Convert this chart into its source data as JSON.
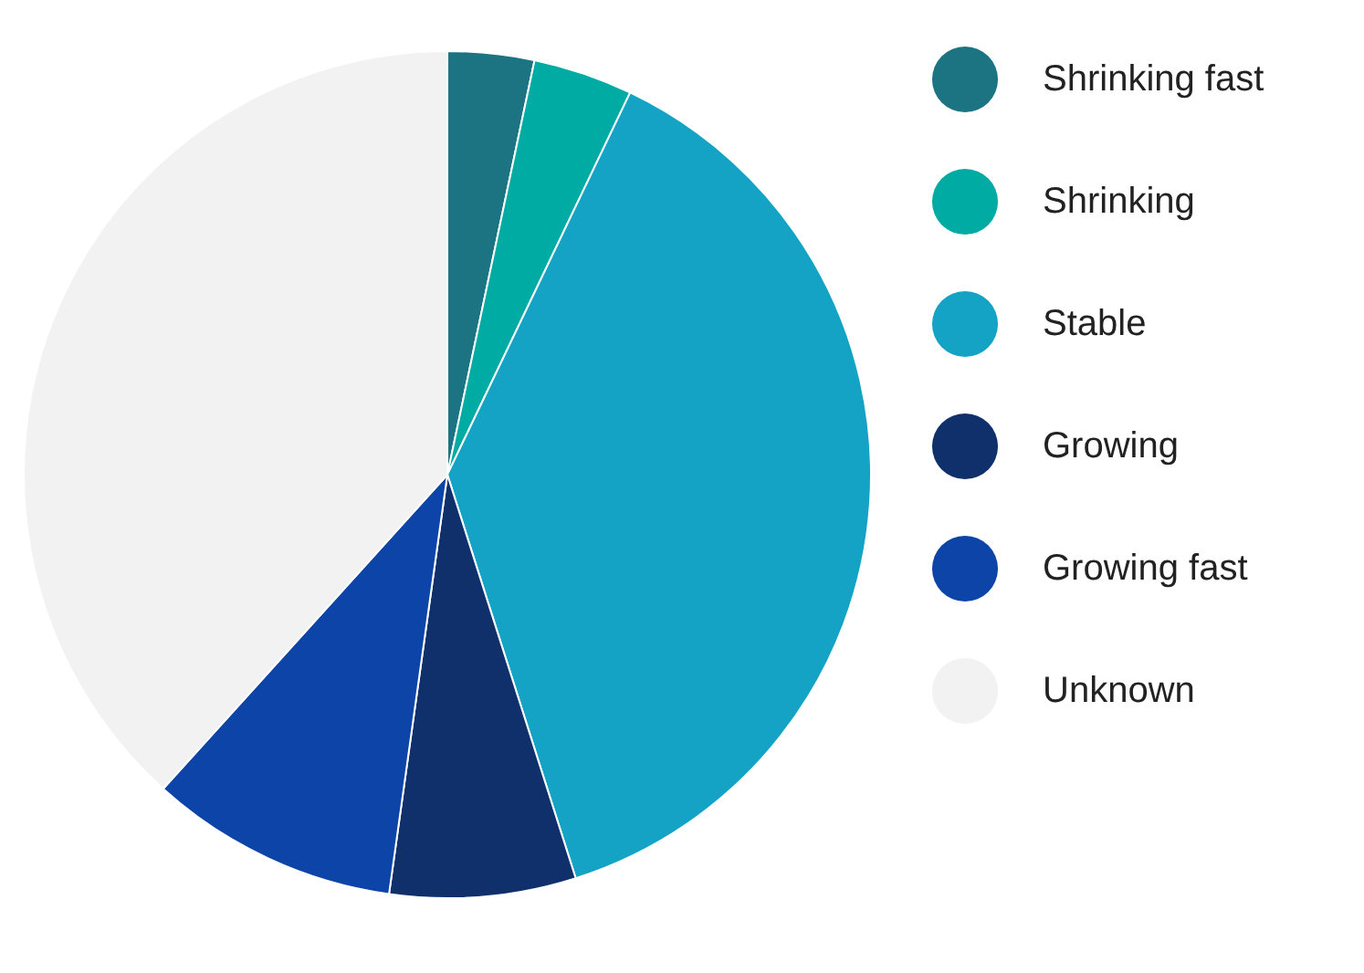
{
  "chart_data": {
    "type": "pie",
    "categories": [
      "Shrinking fast",
      "Shrinking",
      "Stable",
      "Growing",
      "Growing fast",
      "Unknown"
    ],
    "values": [
      3.3,
      3.8,
      38,
      7.1,
      9.5,
      38.3
    ],
    "colors": [
      "#1c7483",
      "#00aba4",
      "#14a3c4",
      "#10306b",
      "#0c44a8",
      "#f2f2f2"
    ],
    "legend": "right"
  }
}
